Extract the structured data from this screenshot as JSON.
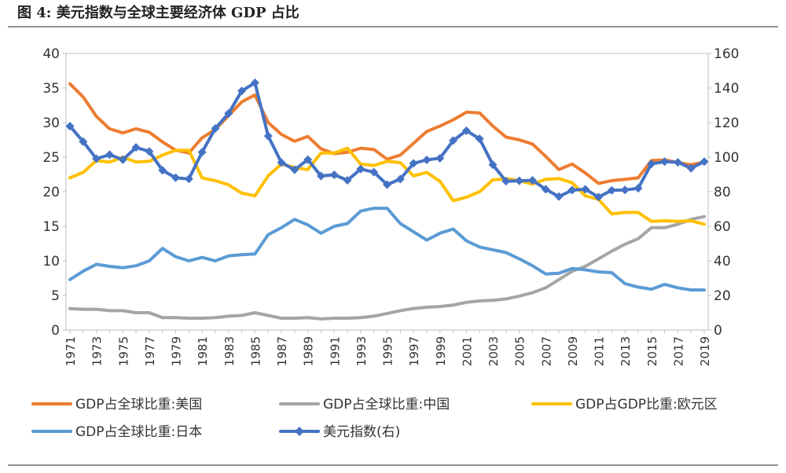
{
  "caption": "图 4:  美元指数与全球主要经济体 GDP 占比",
  "chart_data": {
    "type": "line",
    "title": "图 4:  美元指数与全球主要经济体 GDP 占比",
    "x": [
      1971,
      1972,
      1973,
      1974,
      1975,
      1976,
      1977,
      1978,
      1979,
      1980,
      1981,
      1982,
      1983,
      1984,
      1985,
      1986,
      1987,
      1988,
      1989,
      1990,
      1991,
      1992,
      1993,
      1994,
      1995,
      1996,
      1997,
      1998,
      1999,
      2000,
      2001,
      2002,
      2003,
      2004,
      2005,
      2006,
      2007,
      2008,
      2009,
      2010,
      2011,
      2012,
      2013,
      2014,
      2015,
      2016,
      2017,
      2018,
      2019
    ],
    "x_tick_labels": [
      "1971",
      "1973",
      "1975",
      "1977",
      "1979",
      "1981",
      "1983",
      "1985",
      "1987",
      "1989",
      "1991",
      "1993",
      "1995",
      "1997",
      "1999",
      "2001",
      "2003",
      "2005",
      "2007",
      "2009",
      "2011",
      "2013",
      "2015",
      "2017",
      "2019"
    ],
    "y_left": {
      "range": [
        0,
        40
      ],
      "ticks": [
        "0",
        "5",
        "10",
        "15",
        "20",
        "25",
        "30",
        "35",
        "40"
      ]
    },
    "y_right": {
      "range": [
        0,
        160
      ],
      "ticks": [
        "0",
        "20",
        "40",
        "60",
        "80",
        "100",
        "120",
        "140",
        "160"
      ]
    },
    "grid": false,
    "legend_position": "bottom",
    "series": [
      {
        "name": "GDP占全球比重:美国",
        "axis": "left",
        "color": "#ED7D31",
        "marker": "none",
        "values": [
          35.6,
          33.7,
          30.9,
          29.1,
          28.5,
          29.1,
          28.6,
          27.2,
          26.0,
          25.6,
          27.8,
          29.0,
          31.0,
          33.0,
          34.0,
          30.0,
          28.3,
          27.3,
          28.0,
          26.2,
          25.5,
          25.7,
          26.3,
          26.1,
          24.7,
          25.3,
          27.0,
          28.7,
          29.5,
          30.4,
          31.5,
          31.4,
          29.5,
          27.9,
          27.5,
          26.9,
          25.1,
          23.2,
          24.0,
          22.7,
          21.2,
          21.6,
          21.8,
          22.0,
          24.5,
          24.6,
          24.2,
          23.9,
          24.3
        ]
      },
      {
        "name": "GDP占全球比重:中国",
        "axis": "left",
        "color": "#A5A5A5",
        "marker": "none",
        "values": [
          3.1,
          3.0,
          3.0,
          2.8,
          2.8,
          2.5,
          2.5,
          1.8,
          1.8,
          1.7,
          1.7,
          1.8,
          2.0,
          2.1,
          2.5,
          2.1,
          1.7,
          1.7,
          1.8,
          1.6,
          1.7,
          1.7,
          1.8,
          2.0,
          2.4,
          2.8,
          3.1,
          3.3,
          3.4,
          3.6,
          4.0,
          4.2,
          4.3,
          4.5,
          4.9,
          5.4,
          6.1,
          7.3,
          8.5,
          9.2,
          10.3,
          11.4,
          12.4,
          13.2,
          14.8,
          14.8,
          15.3,
          16.0,
          16.4
        ]
      },
      {
        "name": "GDP占GDP比重:欧元区",
        "axis": "left",
        "color": "#FFC000",
        "marker": "none",
        "values": [
          22.0,
          22.8,
          24.5,
          24.3,
          25.0,
          24.3,
          24.4,
          25.3,
          26.0,
          26.0,
          22.0,
          21.6,
          21.0,
          19.8,
          19.4,
          22.3,
          24.0,
          23.5,
          23.2,
          25.6,
          25.6,
          26.3,
          24.0,
          23.8,
          24.4,
          24.2,
          22.3,
          22.8,
          21.5,
          18.7,
          19.2,
          20.0,
          21.7,
          21.9,
          21.6,
          21.1,
          21.8,
          21.9,
          21.3,
          19.4,
          18.9,
          16.8,
          17.0,
          17.0,
          15.7,
          15.8,
          15.7,
          15.8,
          15.3
        ]
      },
      {
        "name": "GDP占全球比重:日本",
        "axis": "left",
        "color": "#5B9BD5",
        "marker": "none",
        "values": [
          7.3,
          8.5,
          9.5,
          9.2,
          9.0,
          9.3,
          10.0,
          11.8,
          10.6,
          10.0,
          10.5,
          10.0,
          10.7,
          10.9,
          11.0,
          13.8,
          14.8,
          16.0,
          15.2,
          14.0,
          15.0,
          15.4,
          17.2,
          17.6,
          17.6,
          15.4,
          14.2,
          13.0,
          14.0,
          14.6,
          12.9,
          12.0,
          11.6,
          11.2,
          10.3,
          9.3,
          8.1,
          8.2,
          8.9,
          8.7,
          8.4,
          8.3,
          6.7,
          6.2,
          5.9,
          6.6,
          6.1,
          5.8,
          5.8
        ]
      },
      {
        "name": "美元指数(右)",
        "axis": "right",
        "color": "#4472C4",
        "marker": "diamond",
        "values": [
          117.9,
          109.0,
          99.1,
          101.4,
          98.5,
          105.6,
          103.3,
          92.4,
          88.1,
          87.4,
          102.9,
          116.6,
          125.3,
          138.3,
          143.0,
          112.2,
          96.9,
          92.7,
          98.6,
          89.1,
          89.8,
          86.6,
          93.1,
          91.3,
          84.1,
          87.3,
          96.4,
          98.4,
          99.4,
          109.6,
          115.3,
          110.6,
          95.6,
          86.1,
          86.3,
          86.6,
          81.4,
          77.2,
          80.9,
          81.4,
          76.9,
          80.8,
          81.0,
          82.0,
          96.1,
          97.4,
          97.0,
          93.6,
          97.4
        ]
      }
    ]
  }
}
